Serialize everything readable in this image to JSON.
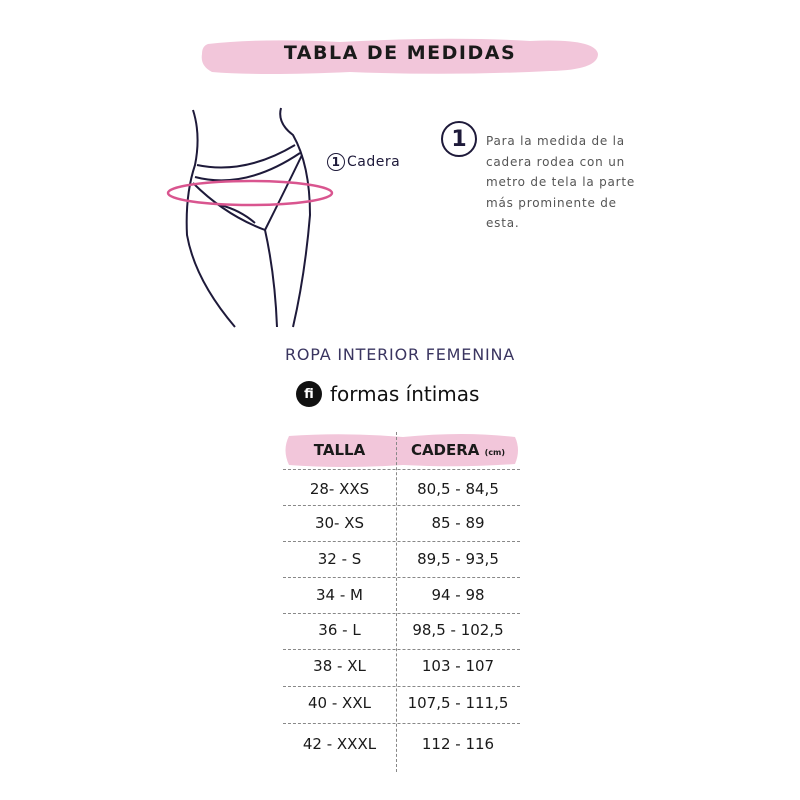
{
  "title": "TABLA DE MEDIDAS",
  "figure": {
    "marker_number": "1",
    "marker_label": "Cadera"
  },
  "instruction": {
    "number": "1",
    "text": "Para la medida de la cadera rodea con un metro de tela la parte más prominente de esta."
  },
  "subtitle": "ROPA INTERIOR FEMENINA",
  "brand": {
    "logo_text": "fi",
    "name": "formas íntimas"
  },
  "colors": {
    "pink": "#f2c6da",
    "hip_line": "#d9558f",
    "ink": "#1e1a3a"
  },
  "table": {
    "headers": {
      "talla": "TALLA",
      "cadera": "CADERA",
      "cadera_unit": "(cm)"
    },
    "rows": [
      {
        "talla": "28- XXS",
        "cadera": "80,5 -  84,5"
      },
      {
        "talla": "30-  XS",
        "cadera": "85 -  89"
      },
      {
        "talla": "32  -  S",
        "cadera": "89,5 - 93,5"
      },
      {
        "talla": "34 -   M",
        "cadera": "94 - 98"
      },
      {
        "talla": "36  -  L",
        "cadera": "98,5 - 102,5"
      },
      {
        "talla": "38  -  XL",
        "cadera": "103 - 107"
      },
      {
        "talla": "40  -  XXL",
        "cadera": "107,5 - 111,5"
      },
      {
        "talla": "42  -  XXXL",
        "cadera": "112 - 116"
      }
    ]
  }
}
